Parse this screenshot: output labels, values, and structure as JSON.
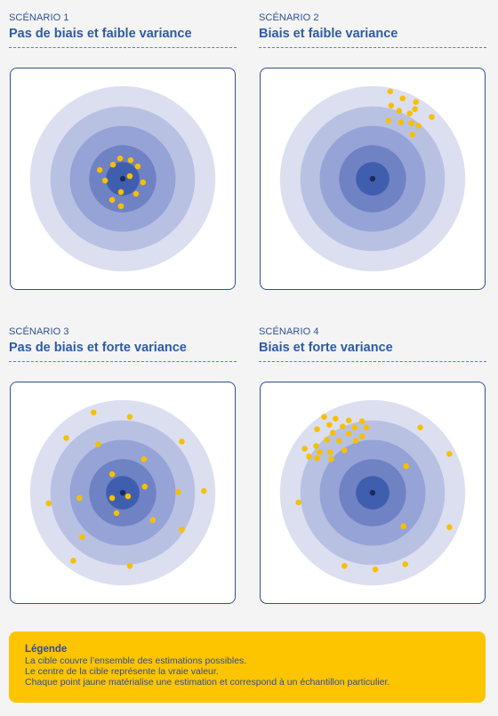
{
  "scenarios": [
    {
      "label": "SCÉNARIO 1",
      "title": "Pas de biais et faible variance",
      "points": [
        [
          -26,
          -10
        ],
        [
          -11,
          -16
        ],
        [
          -3,
          -23
        ],
        [
          9,
          -21
        ],
        [
          17,
          -14
        ],
        [
          -20,
          2
        ],
        [
          23,
          4
        ],
        [
          8,
          -3
        ],
        [
          -2,
          15
        ],
        [
          15,
          17
        ],
        [
          -12,
          24
        ],
        [
          -2,
          31
        ]
      ]
    },
    {
      "label": "SCÉNARIO 2",
      "title": "Biais et faible variance",
      "points": [
        [
          20,
          -99
        ],
        [
          34,
          -91
        ],
        [
          49,
          -87
        ],
        [
          21,
          -83
        ],
        [
          30,
          -77
        ],
        [
          42,
          -74
        ],
        [
          48,
          -79
        ],
        [
          67,
          -70
        ],
        [
          18,
          -66
        ],
        [
          32,
          -64
        ],
        [
          44,
          -63
        ],
        [
          52,
          -60
        ],
        [
          45,
          -50
        ]
      ]
    },
    {
      "label": "SCÉNARIO 3",
      "title": "Pas de biais et forte variance",
      "points": [
        [
          -33,
          -91
        ],
        [
          8,
          -86
        ],
        [
          -64,
          -62
        ],
        [
          67,
          -58
        ],
        [
          -28,
          -55
        ],
        [
          24,
          -38
        ],
        [
          -12,
          -21
        ],
        [
          -49,
          6
        ],
        [
          -12,
          6
        ],
        [
          6,
          4
        ],
        [
          25,
          -7
        ],
        [
          -7,
          23
        ],
        [
          63,
          -1
        ],
        [
          92,
          -2
        ],
        [
          34,
          31
        ],
        [
          -84,
          12
        ],
        [
          -46,
          50
        ],
        [
          67,
          42
        ],
        [
          -56,
          77
        ],
        [
          8,
          83
        ]
      ]
    },
    {
      "label": "SCÉNARIO 4",
      "title": "Biais et forte variance",
      "points": [
        [
          -55,
          -86
        ],
        [
          -42,
          -84
        ],
        [
          -27,
          -82
        ],
        [
          -12,
          -81
        ],
        [
          -49,
          -77
        ],
        [
          -34,
          -75
        ],
        [
          -20,
          -74
        ],
        [
          -7,
          -74
        ],
        [
          -63,
          -72
        ],
        [
          -45,
          -68
        ],
        [
          -27,
          -67
        ],
        [
          -12,
          -64
        ],
        [
          -52,
          -60
        ],
        [
          -38,
          -59
        ],
        [
          -19,
          -59
        ],
        [
          -64,
          -53
        ],
        [
          -77,
          -50
        ],
        [
          -60,
          -46
        ],
        [
          -48,
          -46
        ],
        [
          -72,
          -41
        ],
        [
          -63,
          -39
        ],
        [
          -32,
          -48
        ],
        [
          -47,
          -38
        ],
        [
          54,
          -74
        ],
        [
          87,
          -44
        ],
        [
          38,
          -30
        ],
        [
          -84,
          11
        ],
        [
          35,
          38
        ],
        [
          87,
          39
        ],
        [
          -32,
          83
        ],
        [
          3,
          87
        ],
        [
          37,
          81
        ]
      ]
    }
  ],
  "legend": {
    "title": "Légende",
    "lines": [
      "La cible couvre l’ensemble des estimations possibles.",
      "Le centre de la cible représente la vraie valeur.",
      "Chaque point jaune matérialise une estimation et correspond à un échantillon particulier."
    ]
  },
  "colors": {
    "ring1": "#dcdff0",
    "ring2": "#b9c1e3",
    "ring3": "#96a3d6",
    "ring4": "#6f82c4",
    "core": "#3f5fae",
    "center": "#1b2a5c",
    "dot": "#f6c000",
    "text": "#2e4f9a"
  }
}
